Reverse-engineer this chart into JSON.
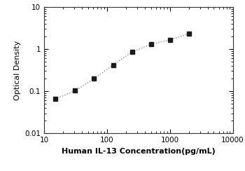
{
  "x": [
    15,
    31.25,
    62.5,
    125,
    250,
    500,
    1000,
    2000
  ],
  "y": [
    0.065,
    0.103,
    0.198,
    0.42,
    0.85,
    1.3,
    1.65,
    2.3
  ],
  "marker": "s",
  "marker_color": "#1a1a1a",
  "marker_size": 4.5,
  "line_color": "#888888",
  "line_style": ":",
  "line_width": 1.0,
  "xlabel": "Human IL-13 Concentration(pg/mL)",
  "ylabel": "Optical Density",
  "xlim": [
    10,
    10000
  ],
  "ylim": [
    0.01,
    10
  ],
  "xticks": [
    10,
    100,
    1000,
    10000
  ],
  "xtick_labels": [
    "10",
    "100",
    "1000",
    "10000"
  ],
  "yticks": [
    0.01,
    0.1,
    1,
    10
  ],
  "ytick_labels": [
    "0.01",
    "0.1",
    "1",
    "10"
  ],
  "xlabel_fontsize": 8,
  "ylabel_fontsize": 8,
  "tick_fontsize": 7.5,
  "background_color": "#ffffff"
}
